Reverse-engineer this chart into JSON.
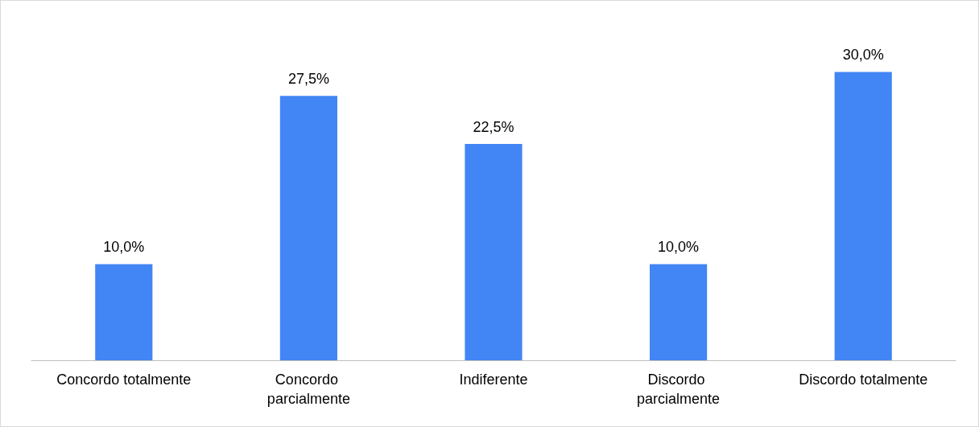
{
  "chart_data": {
    "type": "bar",
    "categories": [
      "Concordo totalmente",
      "Concordo parcialmente",
      "Indiferente",
      "Discordo parcialmente",
      "Discordo totalmente"
    ],
    "values": [
      10,
      27.5,
      22.5,
      10,
      30
    ],
    "value_labels": [
      "10,0%",
      "27,5%",
      "22,5%",
      "10,0%",
      "30,0%"
    ],
    "color": "#4285f4"
  }
}
